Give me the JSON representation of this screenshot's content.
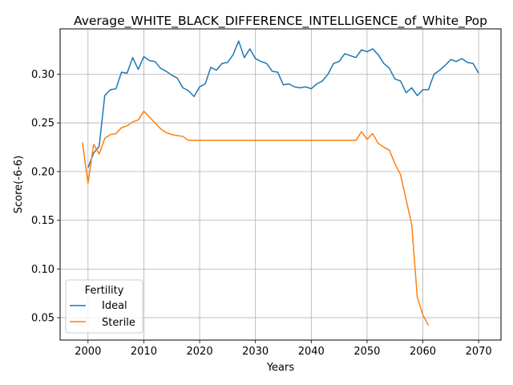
{
  "chart_data": {
    "type": "line",
    "title": "Average_WHITE_BLACK_DIFFERENCE_INTELLIGENCE_of_White_Pop",
    "xlabel": "Years",
    "ylabel": "Score(-6-6)",
    "xlim": [
      1995,
      2074
    ],
    "ylim": [
      0.027,
      0.3465
    ],
    "x_ticks": [
      2000,
      2010,
      2020,
      2030,
      2040,
      2050,
      2060,
      2070
    ],
    "y_ticks": [
      0.05,
      0.1,
      0.15,
      0.2,
      0.25,
      0.3
    ],
    "y_tick_labels": [
      "0.05",
      "0.10",
      "0.15",
      "0.20",
      "0.25",
      "0.30"
    ],
    "grid": true,
    "legend": {
      "title": "Fertility",
      "placement": "lower-left"
    },
    "colors": {
      "Ideal": "#1f77b4",
      "Sterile": "#ff7f0e"
    },
    "series": [
      {
        "name": "Ideal",
        "x": [
          2000,
          2001,
          2002,
          2003,
          2004,
          2005,
          2006,
          2007,
          2008,
          2009,
          2010,
          2011,
          2012,
          2013,
          2014,
          2015,
          2016,
          2017,
          2018,
          2019,
          2020,
          2021,
          2022,
          2023,
          2024,
          2025,
          2026,
          2027,
          2028,
          2029,
          2030,
          2031,
          2032,
          2033,
          2034,
          2035,
          2036,
          2037,
          2038,
          2039,
          2040,
          2041,
          2042,
          2043,
          2044,
          2045,
          2046,
          2047,
          2048,
          2049,
          2050,
          2051,
          2052,
          2053,
          2054,
          2055,
          2056,
          2057,
          2058,
          2059,
          2060,
          2061,
          2062,
          2063,
          2064,
          2065,
          2066,
          2067,
          2068,
          2069,
          2070
        ],
        "values": [
          0.204,
          0.219,
          0.226,
          0.278,
          0.284,
          0.285,
          0.302,
          0.301,
          0.317,
          0.305,
          0.318,
          0.314,
          0.313,
          0.306,
          0.303,
          0.299,
          0.296,
          0.286,
          0.283,
          0.277,
          0.287,
          0.29,
          0.307,
          0.304,
          0.311,
          0.312,
          0.32,
          0.334,
          0.317,
          0.326,
          0.316,
          0.313,
          0.311,
          0.303,
          0.302,
          0.289,
          0.29,
          0.287,
          0.286,
          0.287,
          0.285,
          0.29,
          0.293,
          0.3,
          0.311,
          0.313,
          0.321,
          0.319,
          0.317,
          0.325,
          0.323,
          0.326,
          0.32,
          0.311,
          0.306,
          0.295,
          0.293,
          0.281,
          0.286,
          0.278,
          0.284,
          0.284,
          0.3,
          0.304,
          0.309,
          0.315,
          0.313,
          0.316,
          0.312,
          0.311,
          0.301
        ]
      },
      {
        "name": "Sterile",
        "x": [
          1999,
          2000,
          2001,
          2002,
          2003,
          2004,
          2005,
          2006,
          2007,
          2008,
          2009,
          2010,
          2011,
          2012,
          2013,
          2014,
          2015,
          2016,
          2017,
          2018,
          2019,
          2020,
          2021,
          2022,
          2023,
          2024,
          2025,
          2026,
          2027,
          2028,
          2029,
          2030,
          2031,
          2032,
          2033,
          2034,
          2035,
          2036,
          2037,
          2038,
          2039,
          2040,
          2041,
          2042,
          2043,
          2044,
          2045,
          2046,
          2047,
          2048,
          2049,
          2050,
          2051,
          2052,
          2053,
          2054,
          2055,
          2056,
          2057,
          2058,
          2059,
          2060,
          2061
        ],
        "values": [
          0.23,
          0.188,
          0.228,
          0.218,
          0.234,
          0.238,
          0.239,
          0.245,
          0.247,
          0.251,
          0.253,
          0.262,
          0.256,
          0.25,
          0.244,
          0.24,
          0.238,
          0.237,
          0.236,
          0.232,
          0.232,
          0.232,
          0.232,
          0.232,
          0.232,
          0.232,
          0.232,
          0.232,
          0.232,
          0.232,
          0.232,
          0.232,
          0.232,
          0.232,
          0.232,
          0.232,
          0.232,
          0.232,
          0.232,
          0.232,
          0.232,
          0.232,
          0.232,
          0.232,
          0.232,
          0.232,
          0.232,
          0.232,
          0.232,
          0.232,
          0.241,
          0.233,
          0.239,
          0.229,
          0.225,
          0.222,
          0.208,
          0.197,
          0.171,
          0.146,
          0.071,
          0.053,
          0.042
        ]
      }
    ]
  }
}
